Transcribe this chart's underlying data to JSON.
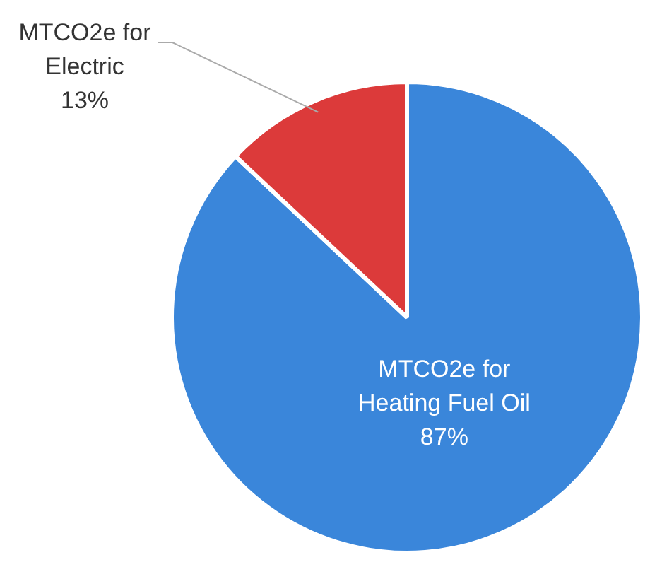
{
  "chart_data": {
    "type": "pie",
    "categories": [
      "MTCO2e for Heating Fuel Oil",
      "MTCO2e for Electric"
    ],
    "values": [
      87,
      13
    ],
    "colors": [
      "#3a86da",
      "#dc3a3a"
    ],
    "value_labels": [
      "87%",
      "13%"
    ],
    "legend": false
  }
}
